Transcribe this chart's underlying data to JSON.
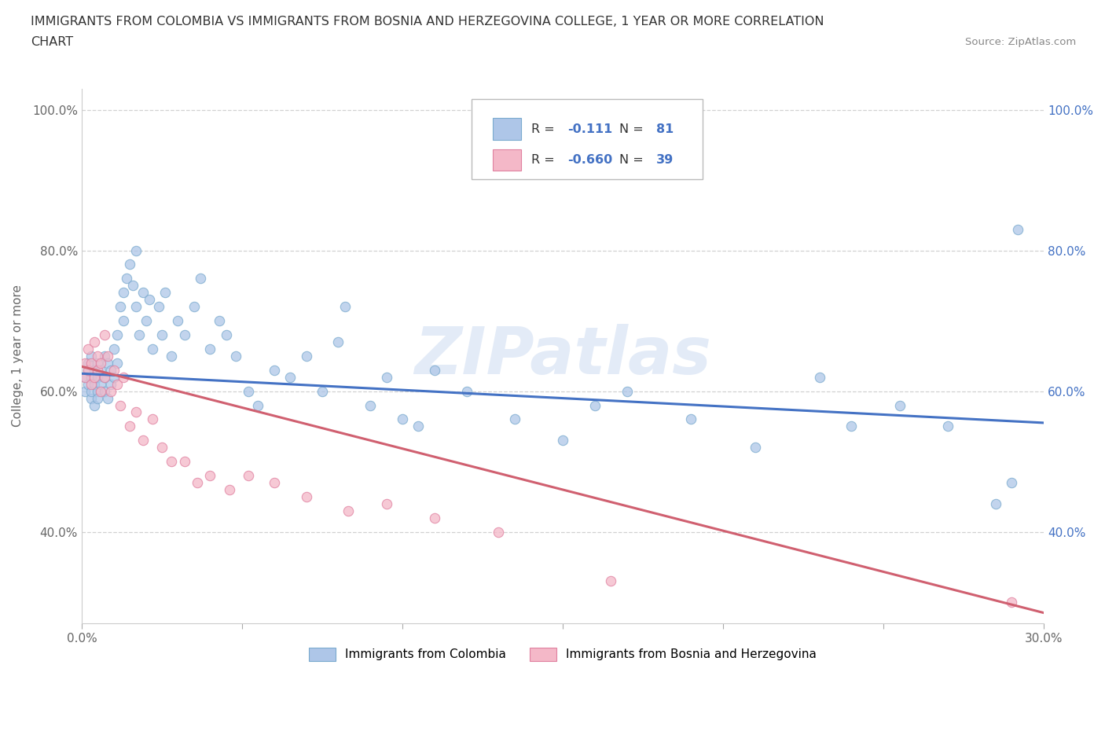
{
  "title_line1": "IMMIGRANTS FROM COLOMBIA VS IMMIGRANTS FROM BOSNIA AND HERZEGOVINA COLLEGE, 1 YEAR OR MORE CORRELATION",
  "title_line2": "CHART",
  "source": "Source: ZipAtlas.com",
  "ylabel": "College, 1 year or more",
  "xlim": [
    0.0,
    0.3
  ],
  "ylim": [
    0.27,
    1.03
  ],
  "xticks": [
    0.0,
    0.05,
    0.1,
    0.15,
    0.2,
    0.25,
    0.3
  ],
  "yticks": [
    0.4,
    0.6,
    0.8,
    1.0
  ],
  "yticklabels": [
    "40.0%",
    "60.0%",
    "80.0%",
    "100.0%"
  ],
  "colombia_color": "#aec6e8",
  "colombia_edge_color": "#7aaace",
  "bosnia_color": "#f4b8c8",
  "bosnia_edge_color": "#e080a0",
  "colombia_line_color": "#4472c4",
  "bosnia_line_color": "#d06070",
  "right_tick_color": "#4472c4",
  "colombia_R": -0.111,
  "colombia_N": 81,
  "bosnia_R": -0.66,
  "bosnia_N": 39,
  "legend_label_colombia": "Immigrants from Colombia",
  "legend_label_bosnia": "Immigrants from Bosnia and Herzegovina",
  "watermark": "ZIPatlas",
  "grid_color": "#cccccc",
  "bg_color": "#ffffff",
  "colombia_x": [
    0.001,
    0.001,
    0.002,
    0.002,
    0.002,
    0.003,
    0.003,
    0.003,
    0.003,
    0.004,
    0.004,
    0.004,
    0.005,
    0.005,
    0.005,
    0.005,
    0.006,
    0.006,
    0.007,
    0.007,
    0.007,
    0.008,
    0.008,
    0.009,
    0.009,
    0.01,
    0.01,
    0.011,
    0.011,
    0.012,
    0.013,
    0.013,
    0.014,
    0.015,
    0.016,
    0.017,
    0.017,
    0.018,
    0.019,
    0.02,
    0.021,
    0.022,
    0.024,
    0.025,
    0.026,
    0.028,
    0.03,
    0.032,
    0.035,
    0.037,
    0.04,
    0.043,
    0.045,
    0.048,
    0.052,
    0.055,
    0.06,
    0.065,
    0.07,
    0.075,
    0.082,
    0.09,
    0.1,
    0.11,
    0.12,
    0.135,
    0.15,
    0.17,
    0.19,
    0.21,
    0.23,
    0.255,
    0.27,
    0.285,
    0.29,
    0.08,
    0.095,
    0.105,
    0.16,
    0.24,
    0.292
  ],
  "colombia_y": [
    0.62,
    0.6,
    0.64,
    0.61,
    0.63,
    0.59,
    0.62,
    0.65,
    0.6,
    0.58,
    0.63,
    0.61,
    0.64,
    0.6,
    0.62,
    0.59,
    0.63,
    0.61,
    0.65,
    0.62,
    0.6,
    0.64,
    0.59,
    0.63,
    0.61,
    0.66,
    0.62,
    0.68,
    0.64,
    0.72,
    0.74,
    0.7,
    0.76,
    0.78,
    0.75,
    0.72,
    0.8,
    0.68,
    0.74,
    0.7,
    0.73,
    0.66,
    0.72,
    0.68,
    0.74,
    0.65,
    0.7,
    0.68,
    0.72,
    0.76,
    0.66,
    0.7,
    0.68,
    0.65,
    0.6,
    0.58,
    0.63,
    0.62,
    0.65,
    0.6,
    0.72,
    0.58,
    0.56,
    0.63,
    0.6,
    0.56,
    0.53,
    0.6,
    0.56,
    0.52,
    0.62,
    0.58,
    0.55,
    0.44,
    0.47,
    0.67,
    0.62,
    0.55,
    0.58,
    0.55,
    0.83
  ],
  "bosnia_x": [
    0.001,
    0.001,
    0.002,
    0.002,
    0.003,
    0.003,
    0.004,
    0.004,
    0.005,
    0.005,
    0.006,
    0.006,
    0.007,
    0.007,
    0.008,
    0.009,
    0.01,
    0.011,
    0.012,
    0.013,
    0.015,
    0.017,
    0.019,
    0.022,
    0.025,
    0.028,
    0.032,
    0.036,
    0.04,
    0.046,
    0.052,
    0.06,
    0.07,
    0.083,
    0.095,
    0.11,
    0.13,
    0.165,
    0.29
  ],
  "bosnia_y": [
    0.64,
    0.62,
    0.66,
    0.63,
    0.61,
    0.64,
    0.62,
    0.67,
    0.63,
    0.65,
    0.64,
    0.6,
    0.68,
    0.62,
    0.65,
    0.6,
    0.63,
    0.61,
    0.58,
    0.62,
    0.55,
    0.57,
    0.53,
    0.56,
    0.52,
    0.5,
    0.5,
    0.47,
    0.48,
    0.46,
    0.48,
    0.47,
    0.45,
    0.43,
    0.44,
    0.42,
    0.4,
    0.33,
    0.3
  ],
  "colombia_line_x": [
    0.0,
    0.3
  ],
  "colombia_line_y": [
    0.625,
    0.555
  ],
  "bosnia_line_x": [
    0.0,
    0.3
  ],
  "bosnia_line_y": [
    0.635,
    0.285
  ]
}
